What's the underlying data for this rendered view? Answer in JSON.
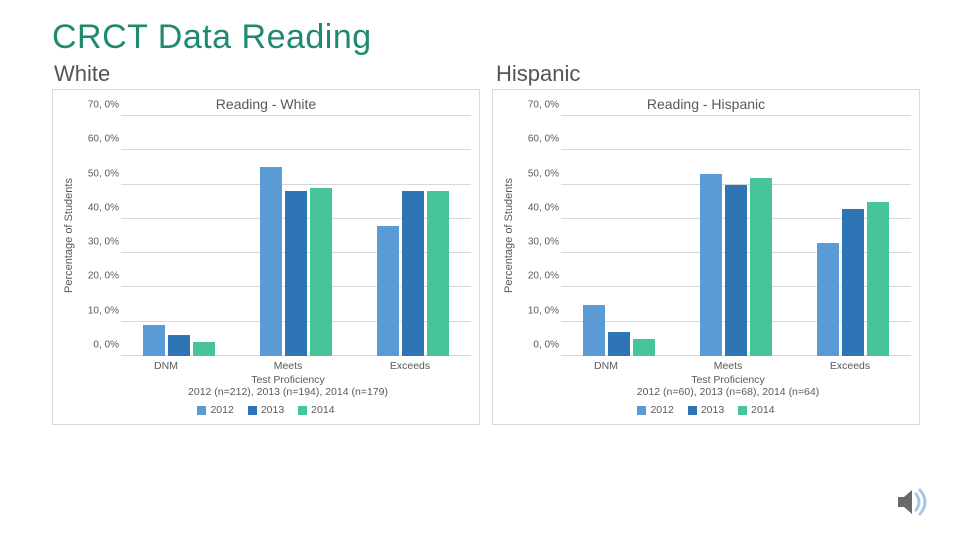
{
  "title": "CRCT Data Reading",
  "subtitles": {
    "left": "White",
    "right": "Hispanic"
  },
  "series_colors": {
    "2012": "#5b9bd5",
    "2013": "#2e75b6",
    "2014": "#47c49a"
  },
  "grid_color": "#d9d9d9",
  "text_color": "#595959",
  "ylim": [
    0,
    70
  ],
  "ytick_step": 10,
  "ytick_labels": [
    "0, 0%",
    "10, 0%",
    "20, 0%",
    "30, 0%",
    "40, 0%",
    "50, 0%",
    "60, 0%",
    "70, 0%"
  ],
  "ylabel": "Percentage of Students",
  "categories": [
    "DNM",
    "Meets",
    "Exceeds"
  ],
  "legend_labels": [
    "2012",
    "2013",
    "2014"
  ],
  "charts": {
    "white": {
      "title": "Reading - White",
      "xlabel": "Test Proficiency\n2012 (n=212), 2013 (n=194), 2014 (n=179)",
      "data": {
        "DNM": {
          "2012": 9,
          "2013": 6,
          "2014": 4
        },
        "Meets": {
          "2012": 55,
          "2013": 48,
          "2014": 49
        },
        "Exceeds": {
          "2012": 38,
          "2013": 48,
          "2014": 48
        }
      }
    },
    "hispanic": {
      "title": "Reading - Hispanic",
      "xlabel": "Test Proficiency\n2012 (n=60), 2013 (n=68), 2014 (n=64)",
      "data": {
        "DNM": {
          "2012": 15,
          "2013": 7,
          "2014": 5
        },
        "Meets": {
          "2012": 53,
          "2013": 50,
          "2014": 52
        },
        "Exceeds": {
          "2012": 33,
          "2013": 43,
          "2014": 45
        }
      }
    }
  },
  "speaker_icon": {
    "body": "#6a6a6a",
    "wave": "#a7c7e7"
  }
}
